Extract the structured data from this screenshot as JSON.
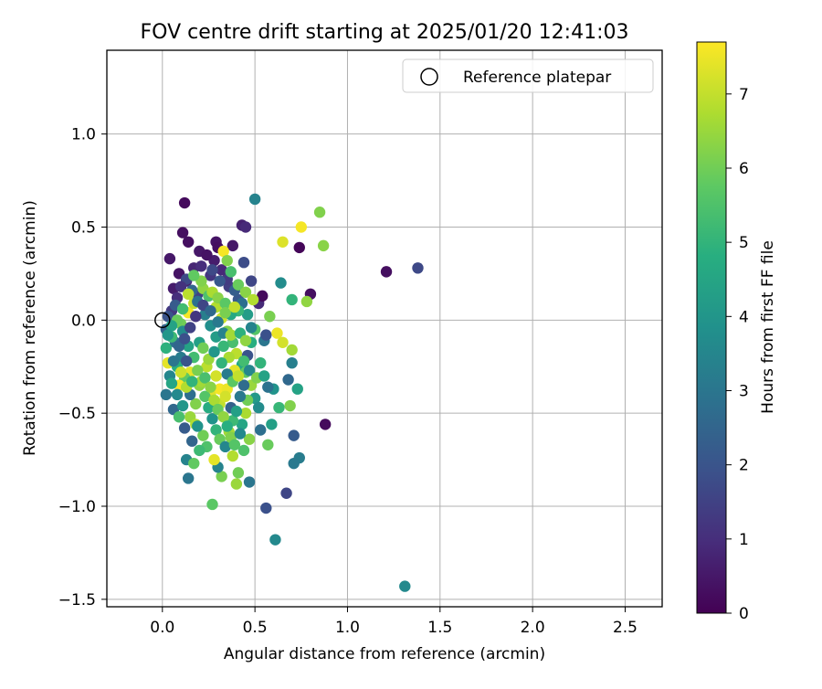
{
  "chart_data": {
    "type": "scatter",
    "title": "FOV centre drift starting at 2025/01/20 12:41:03",
    "xlabel": "Angular distance from reference (arcmin)",
    "ylabel": "Rotation from reference (arcmin)",
    "xlim": [
      -0.3,
      2.7
    ],
    "ylim": [
      -1.54,
      1.45
    ],
    "xticks": [
      0.0,
      0.5,
      1.0,
      1.5,
      2.0,
      2.5
    ],
    "yticks": [
      -1.5,
      -1.0,
      -0.5,
      0.0,
      0.5,
      1.0
    ],
    "xtick_labels": [
      "0.0",
      "0.5",
      "1.0",
      "1.5",
      "2.0",
      "2.5"
    ],
    "ytick_labels": [
      "−1.5",
      "−1.0",
      "−0.5",
      "0.0",
      "0.5",
      "1.0"
    ],
    "grid": true,
    "legend": {
      "position": "top-right",
      "entries": [
        "Reference platepar"
      ]
    },
    "reference_point": {
      "x": 0.0,
      "y": 0.0,
      "marker": "hollow-circle"
    },
    "colorbar": {
      "label": "Hours from first FF file",
      "colormap": "viridis",
      "range": [
        0,
        7.7
      ],
      "ticks": [
        0,
        1,
        2,
        3,
        4,
        5,
        6,
        7
      ],
      "tick_labels": [
        "0",
        "1",
        "2",
        "3",
        "4",
        "5",
        "6",
        "7"
      ]
    },
    "point_fields": [
      "x (arcmin)",
      "y (arcmin)",
      "hours"
    ],
    "points": [
      [
        0.12,
        0.63,
        0.2
      ],
      [
        0.11,
        0.47,
        0.3
      ],
      [
        0.14,
        0.42,
        0.3
      ],
      [
        0.04,
        0.33,
        0.5
      ],
      [
        0.09,
        0.25,
        0.4
      ],
      [
        0.06,
        0.17,
        0.6
      ],
      [
        0.13,
        0.21,
        0.7
      ],
      [
        0.17,
        0.28,
        0.8
      ],
      [
        0.2,
        0.37,
        0.5
      ],
      [
        0.29,
        0.42,
        0.4
      ],
      [
        0.3,
        0.39,
        0.3
      ],
      [
        0.21,
        0.29,
        1.0
      ],
      [
        0.26,
        0.24,
        1.2
      ],
      [
        0.19,
        0.14,
        1.5
      ],
      [
        0.08,
        0.12,
        1.0
      ],
      [
        0.05,
        0.05,
        1.3
      ],
      [
        0.03,
        0.02,
        2.0
      ],
      [
        0.02,
        -0.05,
        2.4
      ],
      [
        0.07,
        -0.12,
        2.8
      ],
      [
        0.1,
        -0.2,
        3.2
      ],
      [
        0.04,
        -0.3,
        3.5
      ],
      [
        0.02,
        -0.4,
        3.0
      ],
      [
        0.06,
        -0.48,
        2.6
      ],
      [
        0.12,
        -0.58,
        2.2
      ],
      [
        0.16,
        -0.65,
        2.5
      ],
      [
        0.13,
        -0.75,
        3.4
      ],
      [
        0.14,
        -0.85,
        3.0
      ],
      [
        0.43,
        0.51,
        0.7
      ],
      [
        0.45,
        0.5,
        0.9
      ],
      [
        0.38,
        0.4,
        0.5
      ],
      [
        0.44,
        0.31,
        1.8
      ],
      [
        0.48,
        0.21,
        1.6
      ],
      [
        0.36,
        0.18,
        1.4
      ],
      [
        0.41,
        0.11,
        2.1
      ],
      [
        0.52,
        0.09,
        0.9
      ],
      [
        0.54,
        0.13,
        0.2
      ],
      [
        0.5,
        0.65,
        3.4
      ],
      [
        0.64,
        0.2,
        3.7
      ],
      [
        0.65,
        0.42,
        7.3
      ],
      [
        0.75,
        0.5,
        7.6
      ],
      [
        0.74,
        0.39,
        0.1
      ],
      [
        0.85,
        0.58,
        6.2
      ],
      [
        0.87,
        0.4,
        6.3
      ],
      [
        0.8,
        0.14,
        0.3
      ],
      [
        0.78,
        0.1,
        6.4
      ],
      [
        0.7,
        0.11,
        5.0
      ],
      [
        0.58,
        0.02,
        6.1
      ],
      [
        0.55,
        -0.11,
        3.0
      ],
      [
        0.56,
        -0.08,
        1.9
      ],
      [
        0.62,
        -0.07,
        7.5
      ],
      [
        0.65,
        -0.12,
        7.2
      ],
      [
        0.7,
        -0.16,
        6.6
      ],
      [
        0.7,
        -0.23,
        3.3
      ],
      [
        0.68,
        -0.32,
        2.6
      ],
      [
        0.6,
        -0.37,
        3.9
      ],
      [
        0.73,
        -0.37,
        4.4
      ],
      [
        0.63,
        -0.47,
        5.1
      ],
      [
        0.69,
        -0.46,
        6.2
      ],
      [
        0.59,
        -0.56,
        4.3
      ],
      [
        0.53,
        -0.59,
        2.8
      ],
      [
        0.57,
        -0.67,
        5.9
      ],
      [
        0.71,
        -0.62,
        2.2
      ],
      [
        0.74,
        -0.74,
        3.2
      ],
      [
        0.71,
        -0.77,
        3.1
      ],
      [
        0.67,
        -0.93,
        1.6
      ],
      [
        0.56,
        -1.01,
        1.9
      ],
      [
        0.61,
        -1.18,
        3.6
      ],
      [
        0.88,
        -0.56,
        0.2
      ],
      [
        1.21,
        0.26,
        0.3
      ],
      [
        1.38,
        0.28,
        1.7
      ],
      [
        1.31,
        -1.43,
        3.6
      ],
      [
        0.47,
        -0.87,
        3.0
      ],
      [
        0.4,
        -0.88,
        6.5
      ],
      [
        0.41,
        -0.82,
        6.0
      ],
      [
        0.32,
        -0.84,
        6.1
      ],
      [
        0.27,
        -0.99,
        5.7
      ],
      [
        0.3,
        -0.79,
        3.4
      ],
      [
        0.28,
        -0.75,
        7.4
      ],
      [
        0.38,
        -0.73,
        6.8
      ],
      [
        0.44,
        -0.7,
        5.5
      ],
      [
        0.47,
        -0.64,
        6.3
      ],
      [
        0.43,
        -0.56,
        4.5
      ],
      [
        0.45,
        -0.5,
        6.7
      ],
      [
        0.37,
        -0.47,
        2.4
      ],
      [
        0.31,
        -0.45,
        7.0
      ],
      [
        0.26,
        -0.4,
        7.3
      ],
      [
        0.31,
        -0.37,
        7.6
      ],
      [
        0.35,
        -0.37,
        7.5
      ],
      [
        0.29,
        -0.3,
        7.2
      ],
      [
        0.24,
        -0.25,
        6.9
      ],
      [
        0.2,
        -0.35,
        6.4
      ],
      [
        0.15,
        -0.28,
        7.4
      ],
      [
        0.12,
        -0.31,
        5.8
      ],
      [
        0.09,
        -0.35,
        7.6
      ],
      [
        0.08,
        -0.25,
        4.8
      ],
      [
        0.03,
        -0.23,
        7.4
      ],
      [
        0.02,
        -0.15,
        4.9
      ],
      [
        0.05,
        -0.09,
        5.2
      ],
      [
        0.1,
        -0.02,
        6.0
      ],
      [
        0.14,
        0.04,
        7.6
      ],
      [
        0.17,
        0.09,
        7.0
      ],
      [
        0.22,
        0.17,
        6.4
      ],
      [
        0.25,
        0.13,
        5.5
      ],
      [
        0.29,
        0.07,
        6.8
      ],
      [
        0.32,
        0.01,
        7.1
      ],
      [
        0.35,
        -0.06,
        6.2
      ],
      [
        0.38,
        -0.12,
        5.4
      ],
      [
        0.4,
        -0.18,
        6.9
      ],
      [
        0.43,
        -0.24,
        4.6
      ],
      [
        0.45,
        -0.28,
        5.8
      ],
      [
        0.48,
        -0.35,
        6.5
      ],
      [
        0.5,
        -0.42,
        4.1
      ],
      [
        0.52,
        -0.47,
        3.7
      ],
      [
        0.46,
        -0.43,
        6.0
      ],
      [
        0.39,
        -0.27,
        7.4
      ],
      [
        0.36,
        -0.2,
        6.7
      ],
      [
        0.33,
        -0.14,
        5.1
      ],
      [
        0.29,
        -0.09,
        4.2
      ],
      [
        0.26,
        -0.03,
        3.8
      ],
      [
        0.23,
        0.03,
        3.3
      ],
      [
        0.19,
        0.1,
        2.9
      ],
      [
        0.16,
        0.16,
        2.5
      ],
      [
        0.13,
        0.22,
        1.7
      ],
      [
        0.1,
        0.18,
        1.1
      ],
      [
        0.07,
        0.08,
        2.2
      ],
      [
        0.11,
        -0.06,
        3.7
      ],
      [
        0.14,
        -0.14,
        4.4
      ],
      [
        0.17,
        -0.2,
        5.3
      ],
      [
        0.19,
        -0.27,
        6.1
      ],
      [
        0.21,
        -0.33,
        6.6
      ],
      [
        0.23,
        -0.41,
        5.6
      ],
      [
        0.25,
        -0.47,
        4.7
      ],
      [
        0.27,
        -0.53,
        3.9
      ],
      [
        0.29,
        -0.59,
        5.0
      ],
      [
        0.31,
        -0.64,
        5.9
      ],
      [
        0.34,
        -0.68,
        3.5
      ],
      [
        0.36,
        -0.6,
        6.6
      ],
      [
        0.38,
        -0.54,
        5.2
      ],
      [
        0.4,
        -0.49,
        4.3
      ],
      [
        0.42,
        -0.41,
        3.1
      ],
      [
        0.44,
        -0.35,
        2.7
      ],
      [
        0.46,
        -0.19,
        2.0
      ],
      [
        0.48,
        -0.12,
        4.8
      ],
      [
        0.5,
        -0.05,
        5.6
      ],
      [
        0.46,
        0.03,
        4.2
      ],
      [
        0.43,
        0.09,
        2.8
      ],
      [
        0.39,
        0.16,
        2.3
      ],
      [
        0.35,
        0.22,
        1.3
      ],
      [
        0.32,
        0.27,
        0.9
      ],
      [
        0.28,
        0.32,
        0.6
      ],
      [
        0.24,
        0.35,
        0.4
      ],
      [
        0.33,
        0.37,
        7.6
      ],
      [
        0.35,
        0.32,
        6.2
      ],
      [
        0.37,
        0.26,
        5.4
      ],
      [
        0.41,
        0.19,
        5.9
      ],
      [
        0.45,
        0.15,
        6.3
      ],
      [
        0.49,
        0.11,
        6.8
      ],
      [
        0.41,
        0.05,
        5.1
      ],
      [
        0.37,
        0.03,
        4.6
      ],
      [
        0.2,
        -0.12,
        4.3
      ],
      [
        0.18,
        -0.45,
        6.2
      ],
      [
        0.15,
        -0.52,
        6.5
      ],
      [
        0.18,
        -0.56,
        6.8
      ],
      [
        0.15,
        -0.4,
        2.8
      ],
      [
        0.11,
        -0.46,
        4.0
      ],
      [
        0.08,
        -0.4,
        3.6
      ],
      [
        0.05,
        -0.34,
        4.5
      ],
      [
        0.06,
        -0.22,
        3.0
      ],
      [
        0.09,
        -0.14,
        2.5
      ],
      [
        0.12,
        -0.1,
        1.9
      ],
      [
        0.15,
        -0.04,
        1.5
      ],
      [
        0.18,
        0.02,
        1.2
      ],
      [
        0.22,
        0.08,
        1.6
      ],
      [
        0.26,
        0.05,
        2.6
      ],
      [
        0.3,
        -0.01,
        3.1
      ],
      [
        0.33,
        -0.07,
        3.4
      ],
      [
        0.22,
        -0.15,
        6.0
      ],
      [
        0.25,
        -0.21,
        6.5
      ],
      [
        0.28,
        -0.17,
        4.0
      ],
      [
        0.32,
        -0.23,
        5.0
      ],
      [
        0.35,
        -0.29,
        3.2
      ],
      [
        0.38,
        -0.33,
        5.7
      ],
      [
        0.41,
        -0.3,
        7.0
      ],
      [
        0.44,
        -0.22,
        5.3
      ],
      [
        0.47,
        -0.27,
        3.5
      ],
      [
        0.51,
        -0.31,
        6.2
      ],
      [
        0.53,
        -0.23,
        5.0
      ],
      [
        0.55,
        -0.3,
        4.4
      ],
      [
        0.57,
        -0.36,
        2.9
      ],
      [
        0.22,
        -0.62,
        6.0
      ],
      [
        0.24,
        -0.68,
        5.5
      ],
      [
        0.2,
        -0.7,
        5.2
      ],
      [
        0.17,
        -0.77,
        5.8
      ],
      [
        0.19,
        -0.57,
        3.9
      ],
      [
        0.09,
        -0.52,
        5.4
      ],
      [
        0.13,
        -0.22,
        2.0
      ],
      [
        0.27,
        0.15,
        6.7
      ],
      [
        0.3,
        0.12,
        6.3
      ],
      [
        0.34,
        0.09,
        5.7
      ],
      [
        0.31,
        0.21,
        2.1
      ],
      [
        0.27,
        0.27,
        1.7
      ],
      [
        0.21,
        0.21,
        6.2
      ],
      [
        0.17,
        0.24,
        5.8
      ],
      [
        0.14,
        0.14,
        6.9
      ],
      [
        0.11,
        0.06,
        5.3
      ],
      [
        0.08,
        0.0,
        5.9
      ],
      [
        0.05,
        -0.03,
        4.4
      ],
      [
        0.03,
        -0.08,
        4.0
      ],
      [
        0.13,
        -0.36,
        6.8
      ],
      [
        0.1,
        -0.28,
        7.1
      ],
      [
        0.16,
        -0.33,
        5.0
      ],
      [
        0.23,
        -0.31,
        5.4
      ],
      [
        0.26,
        -0.36,
        6.3
      ],
      [
        0.28,
        -0.43,
        6.7
      ],
      [
        0.3,
        -0.48,
        5.9
      ],
      [
        0.33,
        -0.52,
        6.4
      ],
      [
        0.35,
        -0.57,
        4.8
      ],
      [
        0.37,
        -0.63,
        6.2
      ],
      [
        0.39,
        -0.67,
        5.6
      ],
      [
        0.42,
        -0.61,
        3.6
      ],
      [
        0.34,
        -0.41,
        7.2
      ],
      [
        0.37,
        -0.08,
        6.6
      ],
      [
        0.34,
        0.04,
        6.1
      ],
      [
        0.39,
        0.07,
        7.0
      ],
      [
        0.42,
        -0.07,
        4.9
      ],
      [
        0.45,
        -0.11,
        6.4
      ],
      [
        0.48,
        -0.04,
        3.4
      ]
    ]
  }
}
